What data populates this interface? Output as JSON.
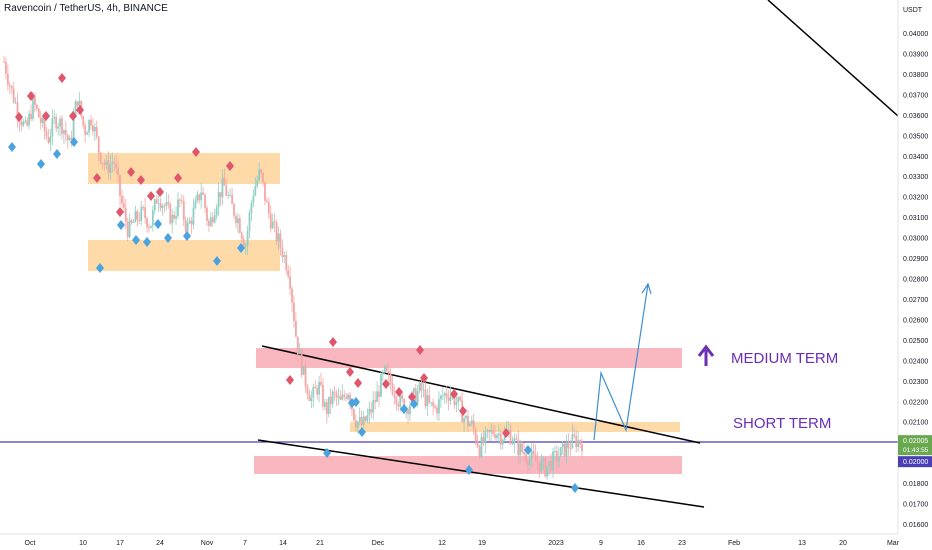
{
  "chart_data": {
    "type": "candlestick",
    "title": "Ravencoin / TetherUS, 4h, BINANCE",
    "currency_label": "USDT",
    "ylim": [
      0.016,
      0.042
    ],
    "y_ticks": [
      "0.04000",
      "0.03900",
      "0.03800",
      "0.03700",
      "0.03600",
      "0.03500",
      "0.03400",
      "0.03300",
      "0.03200",
      "0.03100",
      "0.03000",
      "0.02900",
      "0.02800",
      "0.02700",
      "0.02600",
      "0.02500",
      "0.02400",
      "0.02300",
      "0.02200",
      "0.02100",
      "0.02000",
      "0.01900",
      "0.01800",
      "0.01700",
      "0.01600"
    ],
    "x_ticks": [
      "Oct",
      "10",
      "17",
      "24",
      "Nov",
      "7",
      "14",
      "21",
      "Dec",
      "12",
      "19",
      "2023",
      "9",
      "16",
      "23",
      "Feb",
      "13",
      "20",
      "Mar"
    ],
    "price_tags": [
      {
        "label": "0.02005",
        "sub": "01:43:55",
        "value": 0.02005
      },
      {
        "label": "0.02000",
        "value": 0.02
      }
    ],
    "annotations": [
      {
        "text": "MEDIUM TERM",
        "color": "#6a2fb3"
      },
      {
        "text": "SHORT TERM",
        "color": "#6a2fb3"
      }
    ],
    "price_path": [
      0.0386,
      0.0372,
      0.0361,
      0.0352,
      0.0366,
      0.0357,
      0.0348,
      0.0358,
      0.0355,
      0.0345,
      0.0369,
      0.0352,
      0.0359,
      0.0342,
      0.0334,
      0.0338,
      0.0318,
      0.0303,
      0.0309,
      0.0312,
      0.0306,
      0.0321,
      0.0315,
      0.0309,
      0.0318,
      0.0304,
      0.0313,
      0.0324,
      0.0305,
      0.0318,
      0.0326,
      0.0316,
      0.0309,
      0.0296,
      0.0322,
      0.0332,
      0.0314,
      0.0303,
      0.0294,
      0.0283,
      0.0249,
      0.0232,
      0.0221,
      0.0228,
      0.0215,
      0.0223,
      0.0219,
      0.0226,
      0.0211,
      0.0208,
      0.0214,
      0.0223,
      0.0234,
      0.0228,
      0.022,
      0.0217,
      0.0222,
      0.0226,
      0.0218,
      0.0216,
      0.0223,
      0.0224,
      0.0219,
      0.0211,
      0.0208,
      0.0197,
      0.0202,
      0.0206,
      0.0203,
      0.0205,
      0.0198,
      0.0195,
      0.0192,
      0.019,
      0.0187,
      0.0191,
      0.0194,
      0.0198,
      0.0201,
      0.02
    ]
  }
}
